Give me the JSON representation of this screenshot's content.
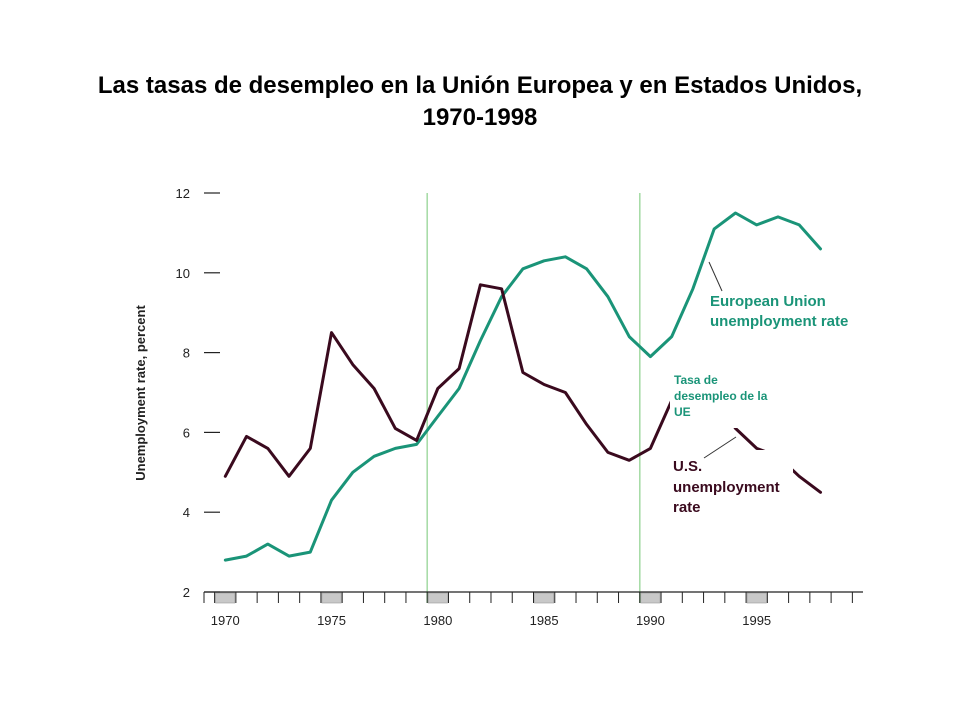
{
  "title": {
    "line1": "Las tasas de desempleo en la Unión Europea y en Estados Unidos,",
    "line2": "1970-1998"
  },
  "chart_data": {
    "type": "line",
    "ylabel": "Unemployment rate, percent",
    "xlabel": "",
    "xlim": [
      1969,
      2000
    ],
    "ylim": [
      2,
      12
    ],
    "yticks": [
      2,
      4,
      6,
      8,
      10,
      12
    ],
    "xtick_labels": [
      "1970",
      "1975",
      "1980",
      "1985",
      "1990",
      "1995"
    ],
    "xtick_values": [
      1970,
      1975,
      1980,
      1985,
      1990,
      1995
    ],
    "recession_lines": [
      1979.5,
      1989.5
    ],
    "shaded_years": [
      1970,
      1975,
      1980,
      1985,
      1990,
      1995
    ],
    "grid": false,
    "series": [
      {
        "name": "European Union unemployment rate",
        "color": "#1a9478",
        "x": [
          1970,
          1971,
          1972,
          1973,
          1974,
          1975,
          1976,
          1977,
          1978,
          1979,
          1980,
          1981,
          1982,
          1983,
          1984,
          1985,
          1986,
          1987,
          1988,
          1989,
          1990,
          1991,
          1992,
          1993,
          1994,
          1995,
          1996,
          1997,
          1998
        ],
        "values": [
          2.8,
          2.9,
          3.2,
          2.9,
          3.0,
          4.3,
          5.0,
          5.4,
          5.6,
          5.7,
          6.4,
          7.1,
          8.3,
          9.4,
          10.1,
          10.3,
          10.4,
          10.1,
          9.4,
          8.4,
          7.9,
          8.4,
          9.6,
          11.1,
          11.5,
          11.2,
          11.4,
          11.2,
          10.6
        ]
      },
      {
        "name": "U.S. unemployment rate",
        "color": "#3a0a1e",
        "x": [
          1970,
          1971,
          1972,
          1973,
          1974,
          1975,
          1976,
          1977,
          1978,
          1979,
          1980,
          1981,
          1982,
          1983,
          1984,
          1985,
          1986,
          1987,
          1988,
          1989,
          1990,
          1991,
          1992,
          1993,
          1994,
          1995,
          1996,
          1997,
          1998
        ],
        "values": [
          4.9,
          5.9,
          5.6,
          4.9,
          5.6,
          8.5,
          7.7,
          7.1,
          6.1,
          5.8,
          7.1,
          7.6,
          9.7,
          9.6,
          7.5,
          7.2,
          7.0,
          6.2,
          5.5,
          5.3,
          5.6,
          6.8,
          7.5,
          6.9,
          6.1,
          5.6,
          5.4,
          4.9,
          4.5
        ]
      }
    ],
    "annotations": {
      "eu_line1": "European Union",
      "eu_line2": "unemployment rate",
      "us_line1": "U.S.",
      "us_line2": "unemployment",
      "us_line3": "rate",
      "tasa_line1": "Tasa de",
      "tasa_line2": "desempleo de la",
      "tasa_line3": "UE"
    }
  }
}
